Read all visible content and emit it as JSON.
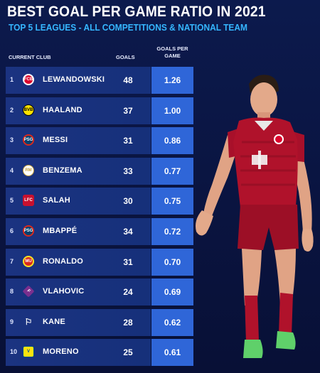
{
  "title": "BEST GOAL PER GAME RATIO IN 2021",
  "subtitle": "TOP 5 LEAGUES - ALL COMPETITIONS & NATIONAL TEAM",
  "columns": {
    "club": "CURRENT CLUB",
    "goals": "GOALS",
    "gpg": "GOALS PER GAME"
  },
  "players": [
    {
      "rank": "1",
      "name": "LEWANDOWSKI",
      "goals": "48",
      "gpg": "1.26",
      "club_icon": "bayern-icon",
      "badge": "FCB"
    },
    {
      "rank": "2",
      "name": "HAALAND",
      "goals": "37",
      "gpg": "1.00",
      "club_icon": "dortmund-icon",
      "badge": "BVB"
    },
    {
      "rank": "3",
      "name": "MESSI",
      "goals": "31",
      "gpg": "0.86",
      "club_icon": "psg-icon",
      "badge": "PSG"
    },
    {
      "rank": "4",
      "name": "BENZEMA",
      "goals": "33",
      "gpg": "0.77",
      "club_icon": "real-madrid-icon",
      "badge": "RM"
    },
    {
      "rank": "5",
      "name": "SALAH",
      "goals": "30",
      "gpg": "0.75",
      "club_icon": "liverpool-icon",
      "badge": "LFC"
    },
    {
      "rank": "6",
      "name": "MBAPPÉ",
      "goals": "34",
      "gpg": "0.72",
      "club_icon": "psg-icon",
      "badge": "PSG"
    },
    {
      "rank": "7",
      "name": "RONALDO",
      "goals": "31",
      "gpg": "0.70",
      "club_icon": "man-united-icon",
      "badge": "MU"
    },
    {
      "rank": "8",
      "name": "VLAHOVIC",
      "goals": "24",
      "gpg": "0.69",
      "club_icon": "fiorentina-icon",
      "badge": "F"
    },
    {
      "rank": "9",
      "name": "KANE",
      "goals": "28",
      "gpg": "0.62",
      "club_icon": "tottenham-icon",
      "badge": "⚐"
    },
    {
      "rank": "10",
      "name": "MORENO",
      "goals": "25",
      "gpg": "0.61",
      "club_icon": "villarreal-icon",
      "badge": "V"
    }
  ],
  "colors": {
    "background": "#0c1a4d",
    "row": "#1b3381",
    "ratio_cell": "#2f66d8",
    "subtitle": "#35b6ff",
    "kit": "#b0122b"
  }
}
